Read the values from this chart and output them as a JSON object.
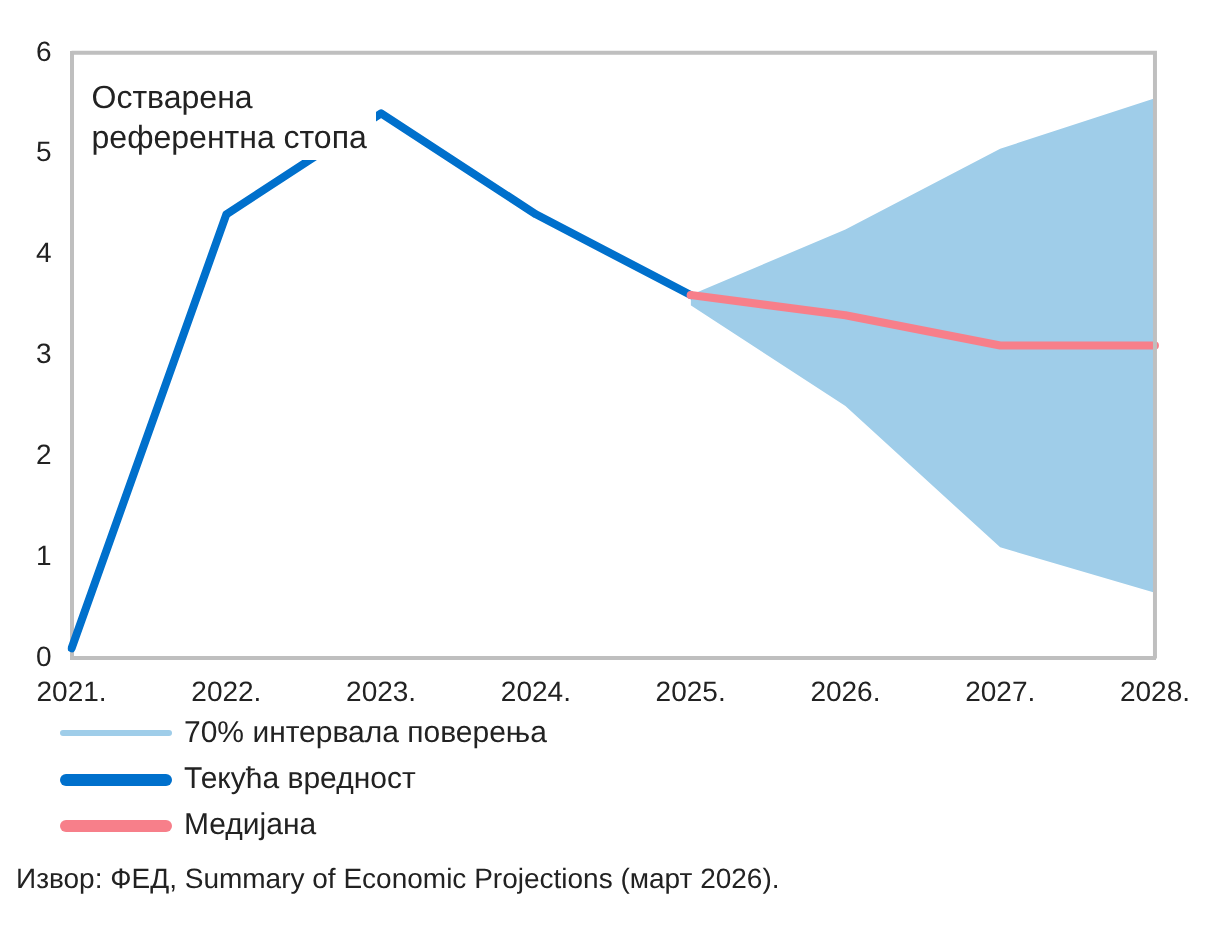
{
  "chart_data": {
    "type": "line",
    "categories": [
      "2021.",
      "2022.",
      "2023.",
      "2024.",
      "2025.",
      "2026.",
      "2027.",
      "2028."
    ],
    "series": [
      {
        "name": "70% интервала поверења",
        "type": "area",
        "color": "#9fcde9",
        "values": [
          null,
          null,
          null,
          null,
          null,
          null,
          null,
          null
        ],
        "lower": [
          null,
          null,
          null,
          null,
          3.5,
          2.5,
          1.1,
          0.65
        ],
        "upper": [
          null,
          null,
          null,
          null,
          3.6,
          4.25,
          5.05,
          5.55
        ]
      },
      {
        "name": "Текућа вредност",
        "color": "#0070cc",
        "values": [
          0.1,
          4.4,
          5.4,
          4.4,
          3.6,
          null,
          null,
          null
        ]
      },
      {
        "name": "Медијана",
        "color": "#f77f8a",
        "values": [
          null,
          null,
          null,
          null,
          3.6,
          3.4,
          3.1,
          3.1
        ]
      }
    ],
    "ylim": [
      0,
      6
    ],
    "yticks": [
      0,
      1,
      2,
      3,
      4,
      5,
      6
    ],
    "grid": false,
    "legend": "bottom left",
    "marker": "none",
    "line_style": "solid",
    "annotations": [
      "Остварена референтна стопа",
      "Извор: ФЕД, Summary of Economic Projections (март 2026)."
    ]
  }
}
